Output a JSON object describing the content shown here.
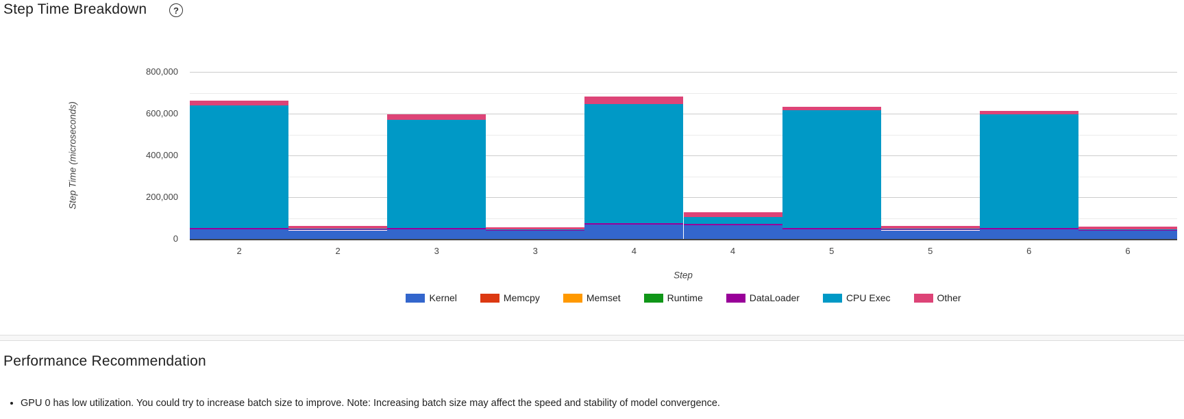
{
  "chart_section": {
    "title": "Step Time Breakdown",
    "help_icon": "?"
  },
  "chart_data": {
    "type": "bar",
    "stacked": true,
    "title": "Step Time Breakdown",
    "xlabel": "Step",
    "ylabel": "Step Time (microseconds)",
    "categories": [
      "2",
      "2",
      "3",
      "3",
      "4",
      "4",
      "5",
      "5",
      "6",
      "6"
    ],
    "series": [
      {
        "name": "Kernel",
        "color": "#3366cc",
        "values": [
          47000,
          41000,
          46000,
          40000,
          70000,
          67000,
          46000,
          41000,
          46000,
          40000
        ]
      },
      {
        "name": "Memcpy",
        "color": "#dc3912",
        "values": [
          0,
          0,
          0,
          0,
          0,
          0,
          0,
          0,
          0,
          0
        ]
      },
      {
        "name": "Memset",
        "color": "#ff9900",
        "values": [
          0,
          0,
          0,
          0,
          0,
          0,
          0,
          0,
          0,
          0
        ]
      },
      {
        "name": "Runtime",
        "color": "#109618",
        "values": [
          0,
          0,
          0,
          0,
          0,
          0,
          0,
          0,
          0,
          0
        ]
      },
      {
        "name": "DataLoader",
        "color": "#990099",
        "values": [
          5000,
          4000,
          5000,
          4000,
          5000,
          5000,
          5000,
          4000,
          5000,
          4000
        ]
      },
      {
        "name": "CPU Exec",
        "color": "#0099c6",
        "values": [
          586000,
          3000,
          521000,
          3000,
          571000,
          34000,
          566000,
          3000,
          546000,
          3000
        ]
      },
      {
        "name": "Other",
        "color": "#dd4477",
        "values": [
          24000,
          14000,
          26000,
          10000,
          36000,
          23000,
          16000,
          14000,
          16000,
          12000
        ]
      }
    ],
    "bar_totals": [
      662000,
      62000,
      598000,
      57000,
      682000,
      129000,
      633000,
      62000,
      613000,
      59000
    ],
    "ylim": [
      0,
      800000
    ],
    "ytick_interval": 200000,
    "minor_grid_interval": 100000,
    "yticks": [
      "0",
      "200,000",
      "400,000",
      "600,000",
      "800,000"
    ],
    "grid": true,
    "legend_position": "bottom",
    "colors": {
      "major_gridline": "#cccccc",
      "minor_gridline": "#ebebeb",
      "baseline": "#424242"
    }
  },
  "recommendation_section": {
    "title": "Performance Recommendation",
    "items": [
      "GPU 0 has low utilization. You could try to increase batch size to improve. Note: Increasing batch size may affect the speed and stability of model convergence."
    ]
  }
}
